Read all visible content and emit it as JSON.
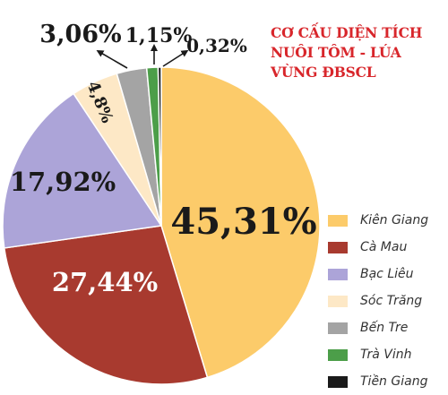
{
  "chart_data": {
    "type": "pie",
    "title": [
      "CƠ CẤU DIỆN TÍCH",
      "NUÔI TÔM - LÚA",
      "VÙNG ĐBSCL"
    ],
    "categories": [
      "Kiên Giang",
      "Cà Mau",
      "Bạc Liêu",
      "Sóc Trăng",
      "Bến Tre",
      "Trà Vinh",
      "Tiền Giang"
    ],
    "values": [
      45.31,
      27.44,
      17.92,
      4.8,
      3.06,
      1.15,
      0.32
    ],
    "labels": [
      "45,31%",
      "27,44%",
      "17,92%",
      "4,8%",
      "3,06%",
      "1,15%",
      "0,32%"
    ],
    "colors": [
      "#fccb6a",
      "#a83a2f",
      "#aca4d8",
      "#fde8c6",
      "#a4a4a4",
      "#4c9e49",
      "#1a1a1a"
    ],
    "legend_position": "bottom-right"
  }
}
